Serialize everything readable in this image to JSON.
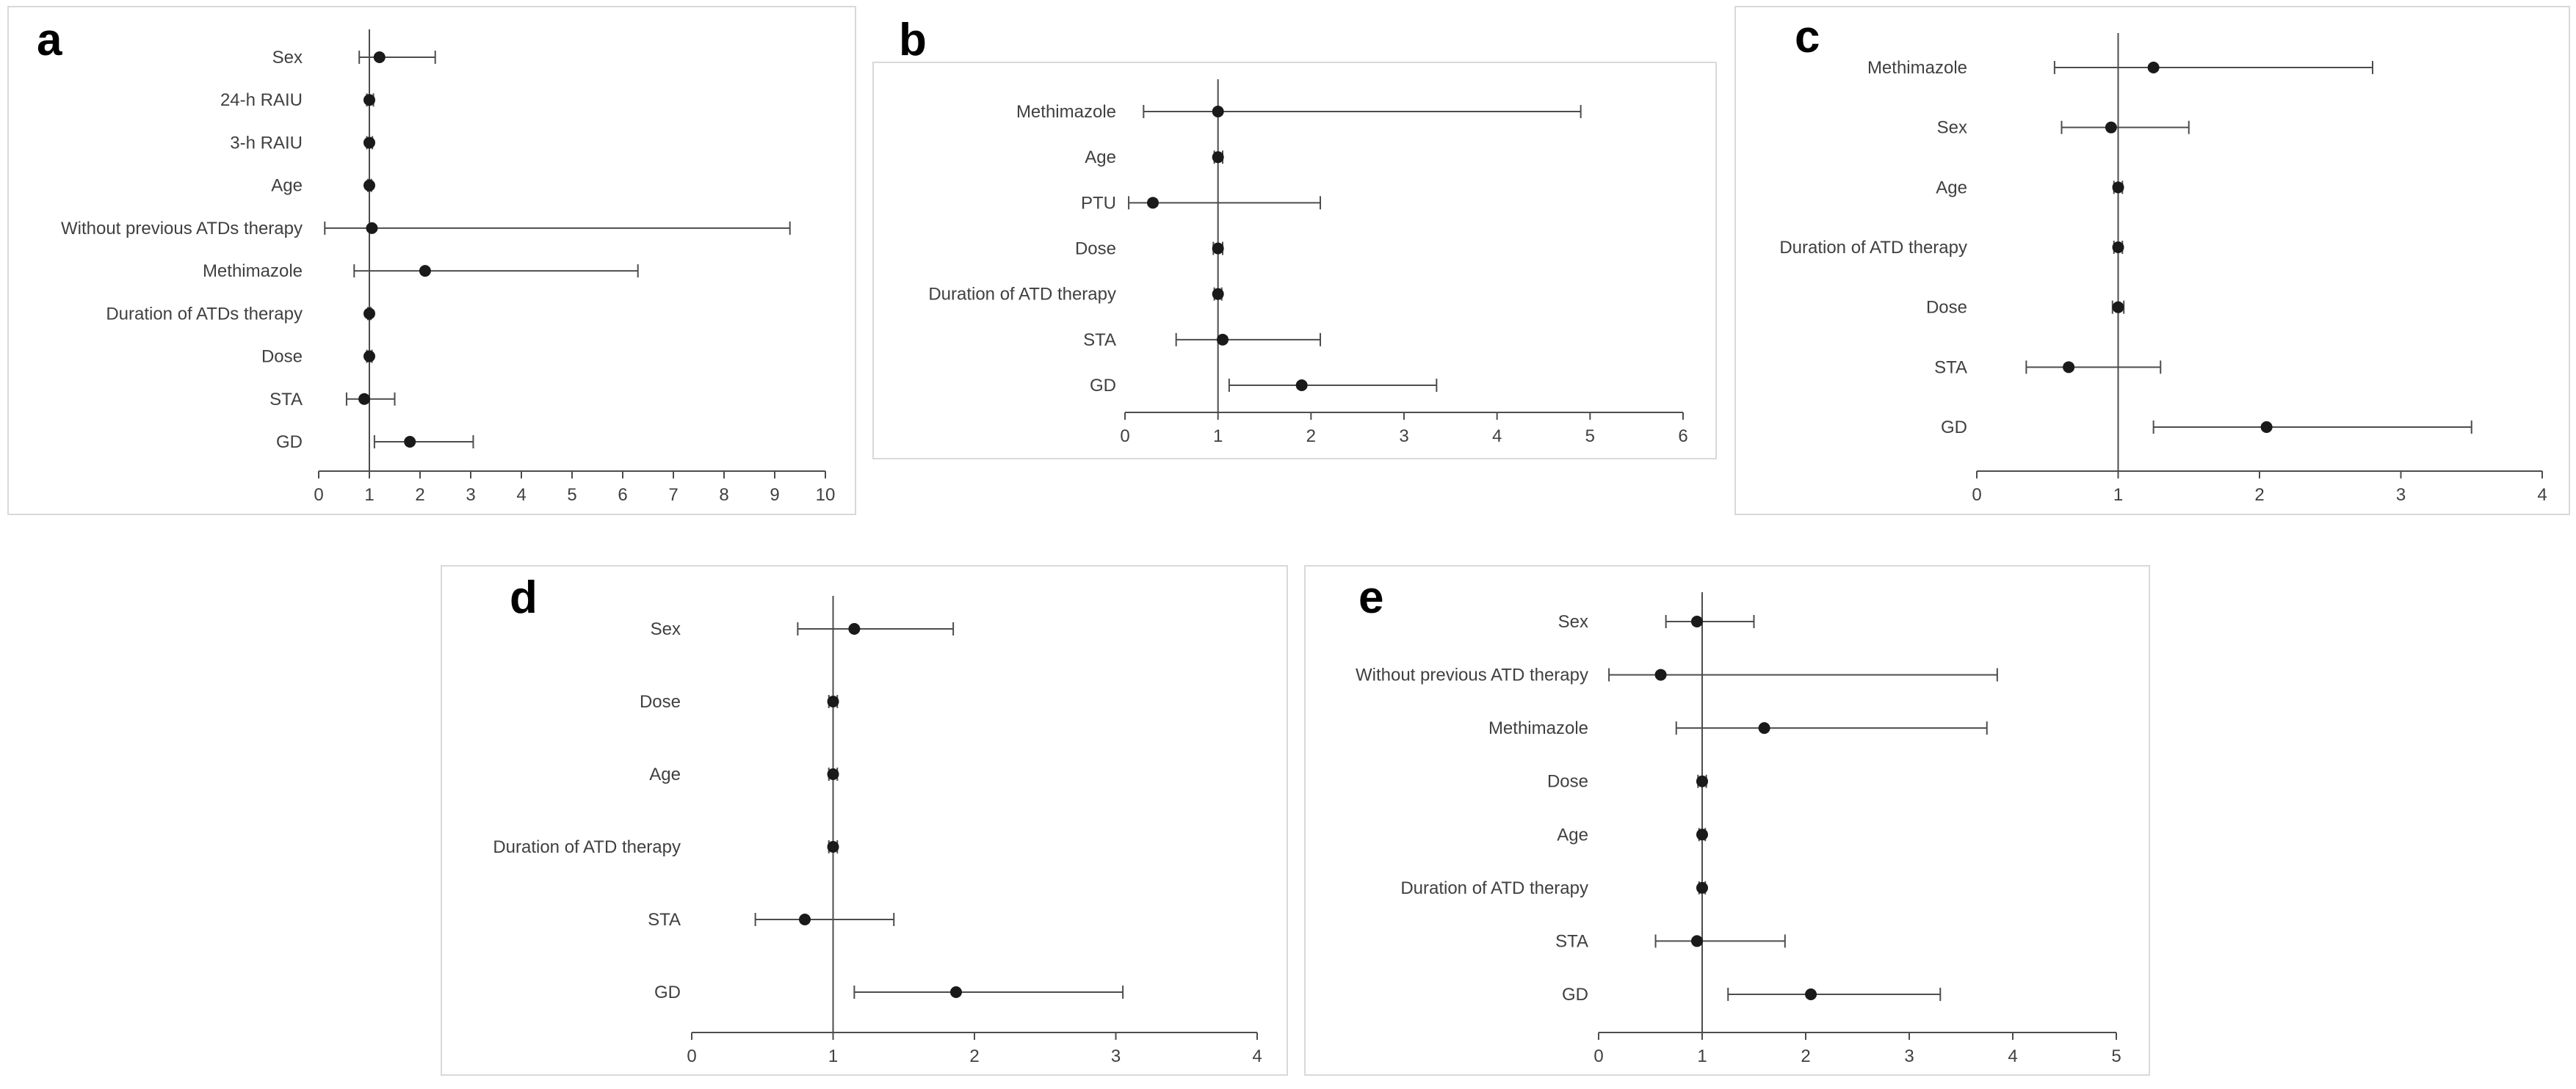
{
  "figure_title": "",
  "colors": {
    "line": "#4d4d4d",
    "point": "#1a1a1a",
    "text": "#404040",
    "panel_border": "#d9d9d9",
    "background": "#ffffff"
  },
  "chart_data": [
    {
      "panel": "a",
      "type": "scatter",
      "variant": "forest-plot",
      "title": "",
      "xlabel": "",
      "ylabel": "",
      "grid": false,
      "legend": "none",
      "categories": [
        "Sex",
        "24-h RAIU",
        "3-h RAIU",
        "Age",
        "Without previous ATDs therapy",
        "Methimazole",
        "Duration of ATDs therapy",
        "Dose",
        "STA",
        "GD"
      ],
      "estimates": [
        1.2,
        1.0,
        1.0,
        1.0,
        1.05,
        2.1,
        1.0,
        1.0,
        0.9,
        1.8
      ],
      "ci_low": [
        0.8,
        0.95,
        0.95,
        0.97,
        0.12,
        0.7,
        0.97,
        0.95,
        0.55,
        1.1
      ],
      "ci_high": [
        2.3,
        1.08,
        1.06,
        1.04,
        9.3,
        6.3,
        1.03,
        1.05,
        1.5,
        3.05
      ],
      "xlim": [
        0,
        10
      ],
      "xticks": [
        0,
        1,
        2,
        3,
        4,
        5,
        6,
        7,
        8,
        9,
        10
      ],
      "reference_line": 1
    },
    {
      "panel": "b",
      "type": "scatter",
      "variant": "forest-plot",
      "title": "",
      "xlabel": "",
      "ylabel": "",
      "grid": false,
      "legend": "none",
      "categories": [
        "Methimazole",
        "Age",
        "PTU",
        "Dose",
        "Duration of ATD therapy",
        "STA",
        "GD"
      ],
      "estimates": [
        1.0,
        1.0,
        0.3,
        1.0,
        1.0,
        1.05,
        1.9
      ],
      "ci_low": [
        0.2,
        0.96,
        0.04,
        0.95,
        0.96,
        0.55,
        1.12
      ],
      "ci_high": [
        4.9,
        1.05,
        2.1,
        1.05,
        1.04,
        2.1,
        3.35
      ],
      "xlim": [
        0,
        6
      ],
      "xticks": [
        0,
        1,
        2,
        3,
        4,
        5,
        6
      ],
      "reference_line": 1
    },
    {
      "panel": "c",
      "type": "scatter",
      "variant": "forest-plot",
      "title": "",
      "xlabel": "",
      "ylabel": "",
      "grid": false,
      "legend": "none",
      "categories": [
        "Methimazole",
        "Sex",
        "Age",
        "Duration of ATD therapy",
        "Dose",
        "STA",
        "GD"
      ],
      "estimates": [
        1.25,
        0.95,
        1.0,
        1.0,
        1.0,
        0.65,
        2.05
      ],
      "ci_low": [
        0.55,
        0.6,
        0.97,
        0.97,
        0.96,
        0.35,
        1.25
      ],
      "ci_high": [
        2.8,
        1.5,
        1.03,
        1.03,
        1.04,
        1.3,
        3.5
      ],
      "xlim": [
        0,
        4
      ],
      "xticks": [
        0,
        1,
        2,
        3,
        4
      ],
      "reference_line": 1
    },
    {
      "panel": "d",
      "type": "scatter",
      "variant": "forest-plot",
      "title": "",
      "xlabel": "",
      "ylabel": "",
      "grid": false,
      "legend": "none",
      "categories": [
        "Sex",
        "Dose",
        "Age",
        "Duration of ATD therapy",
        "STA",
        "GD"
      ],
      "estimates": [
        1.15,
        1.0,
        1.0,
        1.0,
        0.8,
        1.87
      ],
      "ci_low": [
        0.75,
        0.97,
        0.97,
        0.97,
        0.45,
        1.15
      ],
      "ci_high": [
        1.85,
        1.03,
        1.03,
        1.03,
        1.43,
        3.05
      ],
      "xlim": [
        0,
        4
      ],
      "xticks": [
        0,
        1,
        2,
        3,
        4
      ],
      "reference_line": 1
    },
    {
      "panel": "e",
      "type": "scatter",
      "variant": "forest-plot",
      "title": "",
      "xlabel": "",
      "ylabel": "",
      "grid": false,
      "legend": "none",
      "categories": [
        "Sex",
        "Without previous ATD therapy",
        "Methimazole",
        "Dose",
        "Age",
        "Duration of ATD therapy",
        "STA",
        "GD"
      ],
      "estimates": [
        0.95,
        0.6,
        1.6,
        1.0,
        1.0,
        1.0,
        0.95,
        2.05
      ],
      "ci_low": [
        0.65,
        0.1,
        0.75,
        0.96,
        0.97,
        0.97,
        0.55,
        1.25
      ],
      "ci_high": [
        1.5,
        3.85,
        3.75,
        1.04,
        1.03,
        1.03,
        1.8,
        3.3
      ],
      "xlim": [
        0,
        5
      ],
      "xticks": [
        0,
        1,
        2,
        3,
        4,
        5
      ],
      "reference_line": 1
    }
  ]
}
